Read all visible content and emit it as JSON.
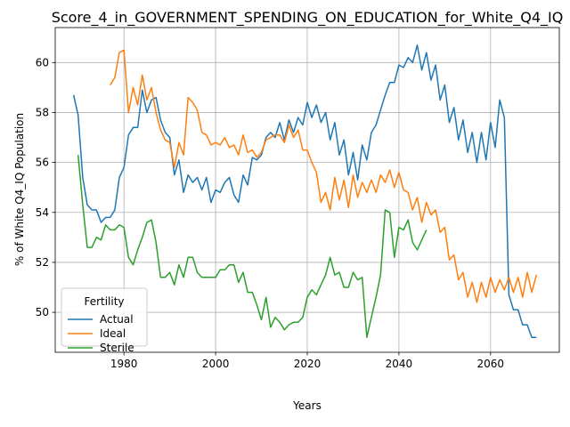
{
  "chart_data": {
    "type": "line",
    "title": "Score_4_in_GOVERNMENT_SPENDING_ON_EDUCATION_for_White_Q4_IQ",
    "xlabel": "Years",
    "ylabel": "% of White Q4_IQ Population",
    "xlim": [
      1965,
      2075
    ],
    "ylim": [
      48.4,
      61.4
    ],
    "xticks": [
      1980,
      2000,
      2020,
      2040,
      2060
    ],
    "yticks": [
      50,
      52,
      54,
      56,
      58,
      60
    ],
    "xtick_labels": [
      "1980",
      "2000",
      "2020",
      "2040",
      "2060"
    ],
    "ytick_labels": [
      "50",
      "52",
      "54",
      "56",
      "58",
      "60"
    ],
    "grid": true,
    "legend": {
      "title": "Fertility",
      "placement": "lower-left"
    },
    "series": [
      {
        "name": "Actual",
        "color": "#1f77b4",
        "x": [
          1969,
          1970,
          1971,
          1972,
          1973,
          1974,
          1975,
          1976,
          1977,
          1978,
          1979,
          1980,
          1981,
          1982,
          1983,
          1984,
          1985,
          1986,
          1987,
          1988,
          1989,
          1990,
          1991,
          1992,
          1993,
          1994,
          1995,
          1996,
          1997,
          1998,
          1999,
          2000,
          2001,
          2002,
          2003,
          2004,
          2005,
          2006,
          2007,
          2008,
          2009,
          2010,
          2011,
          2012,
          2013,
          2014,
          2015,
          2016,
          2017,
          2018,
          2019,
          2020,
          2021,
          2022,
          2023,
          2024,
          2025,
          2026,
          2027,
          2028,
          2029,
          2030,
          2031,
          2032,
          2033,
          2034,
          2035,
          2036,
          2037,
          2038,
          2039,
          2040,
          2041,
          2042,
          2043,
          2044,
          2045,
          2046,
          2047,
          2048,
          2049,
          2050,
          2051,
          2052,
          2053,
          2054,
          2055,
          2056,
          2057,
          2058,
          2059,
          2060,
          2061,
          2062,
          2063,
          2064,
          2065,
          2066,
          2067,
          2068,
          2069,
          2070
        ],
        "y": [
          58.7,
          57.9,
          55.4,
          54.3,
          54.1,
          54.1,
          53.6,
          53.8,
          53.8,
          54.1,
          55.4,
          55.8,
          57.1,
          57.4,
          57.4,
          58.9,
          58.0,
          58.5,
          58.6,
          57.7,
          57.2,
          57.0,
          55.5,
          56.1,
          54.8,
          55.5,
          55.2,
          55.4,
          54.9,
          55.4,
          54.4,
          54.9,
          54.8,
          55.2,
          55.4,
          54.7,
          54.4,
          55.5,
          55.1,
          56.2,
          56.1,
          56.3,
          57.0,
          57.2,
          57.0,
          57.6,
          56.9,
          57.7,
          57.2,
          57.8,
          57.5,
          58.4,
          57.8,
          58.3,
          57.6,
          58.0,
          56.9,
          57.6,
          56.3,
          56.9,
          55.5,
          56.4,
          55.3,
          56.7,
          56.1,
          57.2,
          57.5,
          58.1,
          58.7,
          59.2,
          59.2,
          59.9,
          59.8,
          60.2,
          60.0,
          60.7,
          59.7,
          60.4,
          59.3,
          59.9,
          58.5,
          59.1,
          57.6,
          58.2,
          56.9,
          57.7,
          56.4,
          57.2,
          56.0,
          57.2,
          56.1,
          57.6,
          56.6,
          58.5,
          57.8,
          50.7,
          50.1,
          50.1,
          49.5,
          49.5,
          49.0,
          49.0
        ]
      },
      {
        "name": "Ideal",
        "color": "#ff7f0e",
        "x": [
          1977,
          1978,
          1979,
          1980,
          1981,
          1982,
          1983,
          1984,
          1985,
          1986,
          1987,
          1988,
          1989,
          1990,
          1991,
          1992,
          1993,
          1994,
          1995,
          1996,
          1997,
          1998,
          1999,
          2000,
          2001,
          2002,
          2003,
          2004,
          2005,
          2006,
          2007,
          2008,
          2009,
          2010,
          2011,
          2012,
          2013,
          2014,
          2015,
          2016,
          2017,
          2018,
          2019,
          2020,
          2021,
          2022,
          2023,
          2024,
          2025,
          2026,
          2027,
          2028,
          2029,
          2030,
          2031,
          2032,
          2033,
          2034,
          2035,
          2036,
          2037,
          2038,
          2039,
          2040,
          2041,
          2042,
          2043,
          2044,
          2045,
          2046,
          2047,
          2048,
          2049,
          2050,
          2051,
          2052,
          2053,
          2054,
          2055,
          2056,
          2057,
          2058,
          2059,
          2060,
          2061,
          2062,
          2063,
          2064,
          2065,
          2066,
          2067,
          2068,
          2069,
          2070
        ],
        "y": [
          59.1,
          59.4,
          60.4,
          60.5,
          58.0,
          59.0,
          58.3,
          59.5,
          58.5,
          59.0,
          58.0,
          57.3,
          56.9,
          56.8,
          55.8,
          56.8,
          56.3,
          58.6,
          58.4,
          58.1,
          57.2,
          57.1,
          56.7,
          56.8,
          56.7,
          57.0,
          56.6,
          56.7,
          56.3,
          57.1,
          56.4,
          56.5,
          56.2,
          56.4,
          56.9,
          57.0,
          57.1,
          57.1,
          56.8,
          57.5,
          57.0,
          57.3,
          56.5,
          56.5,
          56.0,
          55.6,
          54.4,
          54.8,
          54.1,
          55.4,
          54.5,
          55.3,
          54.2,
          55.5,
          54.6,
          55.2,
          54.8,
          55.3,
          54.8,
          55.5,
          55.2,
          55.7,
          55.0,
          55.6,
          54.9,
          54.8,
          54.1,
          54.6,
          53.6,
          54.4,
          53.9,
          54.1,
          53.2,
          53.4,
          52.1,
          52.3,
          51.3,
          51.6,
          50.6,
          51.2,
          50.4,
          51.2,
          50.6,
          51.4,
          50.8,
          51.3,
          50.9,
          51.4,
          50.8,
          51.4,
          50.6,
          51.6,
          50.8,
          51.5
        ]
      },
      {
        "name": "Sterile",
        "color": "#2ca02c",
        "x": [
          1970,
          1971,
          1972,
          1973,
          1974,
          1975,
          1976,
          1977,
          1978,
          1979,
          1980,
          1981,
          1982,
          1983,
          1984,
          1985,
          1986,
          1987,
          1988,
          1989,
          1990,
          1991,
          1992,
          1993,
          1994,
          1995,
          1996,
          1997,
          1998,
          1999,
          2000,
          2001,
          2002,
          2003,
          2004,
          2005,
          2006,
          2007,
          2008,
          2009,
          2010,
          2011,
          2012,
          2013,
          2014,
          2015,
          2016,
          2017,
          2018,
          2019,
          2020,
          2021,
          2022,
          2023,
          2024,
          2025,
          2026,
          2027,
          2028,
          2029,
          2030,
          2031,
          2032,
          2033,
          2034,
          2035,
          2036,
          2037,
          2038,
          2039,
          2040,
          2041,
          2042,
          2043,
          2044,
          2045,
          2046
        ],
        "y": [
          56.3,
          54.3,
          52.6,
          52.6,
          53.0,
          52.9,
          53.5,
          53.3,
          53.3,
          53.5,
          53.4,
          52.2,
          51.9,
          52.5,
          53.0,
          53.6,
          53.7,
          52.8,
          51.4,
          51.4,
          51.6,
          51.1,
          51.9,
          51.4,
          52.2,
          52.2,
          51.6,
          51.4,
          51.4,
          51.4,
          51.4,
          51.7,
          51.7,
          51.9,
          51.9,
          51.2,
          51.6,
          50.8,
          50.8,
          50.3,
          49.7,
          50.6,
          49.4,
          49.8,
          49.6,
          49.3,
          49.5,
          49.6,
          49.6,
          49.8,
          50.6,
          50.9,
          50.7,
          51.1,
          51.5,
          52.2,
          51.5,
          51.6,
          51.0,
          51.0,
          51.6,
          51.3,
          51.4,
          49.0,
          49.8,
          50.6,
          51.5,
          54.1,
          54.0,
          52.2,
          53.4,
          53.3,
          53.7,
          52.8,
          52.5,
          52.9,
          53.3
        ]
      }
    ]
  }
}
